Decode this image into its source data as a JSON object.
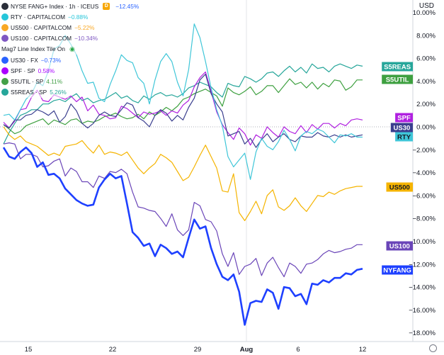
{
  "header": {
    "currency": "USD"
  },
  "legend": [
    {
      "name": "NYSE FANG+ Index · 1h · ICEUS",
      "value": "−12.45%",
      "color": "#2962ff",
      "icon": "fang",
      "flag": "D",
      "main": true
    },
    {
      "name": "RTY · CAPITALCOM",
      "value": "−0.88%",
      "color": "#26c6da",
      "icon": "rty"
    },
    {
      "name": "US500 · CAPITALCOM",
      "value": "−5.22%",
      "color": "#f9a825",
      "icon": "500"
    },
    {
      "name": "US100 · CAPITALCOM",
      "value": "−10.34%",
      "color": "#7e57c2",
      "icon": "100"
    },
    {
      "name": "Mag7 Line Index Tile On",
      "value": "",
      "color": "",
      "icon": "",
      "eye": true
    },
    {
      "name": "US30 · FX",
      "value": "−0.73%",
      "color": "#2962ff",
      "icon": "30"
    },
    {
      "name": "SPF · SP",
      "value": "0.58%",
      "color": "#aa00ff",
      "icon": "spf"
    },
    {
      "name": "S5UTIL · SP",
      "value": "4.11%",
      "color": "#43a047",
      "icon": "s5u"
    },
    {
      "name": "S5REAS · SP",
      "value": "5.26%",
      "color": "#26a69a",
      "icon": "s5r"
    }
  ],
  "colors": {
    "NYFANG": "#1e40ff",
    "US100": "#6a45b8",
    "US500": "#f5b400",
    "RTY": "#3fc6d8",
    "US30": "#3b3f8f",
    "SPF": "#b020e0",
    "S5UTIL": "#3ea040",
    "S5REAS": "#26a69a"
  },
  "chart_data": {
    "type": "line",
    "x_ticks": [
      "15",
      "22",
      "29",
      "Aug",
      "6",
      "12"
    ],
    "y_ticks": [
      "10.00%",
      "8.00%",
      "6.00%",
      "4.00%",
      "2.00%",
      "0.00%",
      "−2.00%",
      "−4.00%",
      "−6.00%",
      "−8.00%",
      "−10.00%",
      "−12.00%",
      "−14.00%",
      "−16.00%",
      "−18.00%"
    ],
    "ylim": [
      -19,
      11
    ],
    "y_unit": "%",
    "series": [
      {
        "name": "S5REAS",
        "label": "S5REAS",
        "values": [
          -1.5,
          -0.5,
          0.3,
          1.0,
          1.2,
          1.5,
          1.5,
          2.0,
          2.0,
          2.3,
          2.4,
          2.2,
          2.6,
          2.9,
          2.3,
          2.5,
          2.1,
          2.3,
          2.4,
          2.7,
          3.0,
          2.5,
          2.7,
          2.3,
          2.1,
          2.7,
          2.4,
          2.8,
          3.0,
          2.7,
          2.8,
          2.6,
          2.9,
          3.4,
          3.6,
          3.9,
          3.7,
          3.5,
          3.0,
          2.6,
          3.8,
          3.6,
          3.5,
          4.4,
          4.2,
          3.9,
          4.2,
          4.7,
          4.8,
          4.4,
          4.9,
          5.3,
          4.8,
          5.2,
          4.7,
          5.5,
          5.1,
          5.2,
          4.8,
          5.3,
          5.5,
          5.3,
          5.1,
          5.4,
          5.3
        ]
      },
      {
        "name": "S5UTIL",
        "label": "S5UTIL",
        "values": [
          0.2,
          -0.2,
          -0.6,
          -0.4,
          0.1,
          0.3,
          0.5,
          0.7,
          0.2,
          0.6,
          0.4,
          0.2,
          0.6,
          0.7,
          0.3,
          0.5,
          0.4,
          0.6,
          0.9,
          1.0,
          1.2,
          0.9,
          0.7,
          0.8,
          1.1,
          0.7,
          1.3,
          1.0,
          1.3,
          1.7,
          1.4,
          1.8,
          2.4,
          2.6,
          2.9,
          3.1,
          3.3,
          3.0,
          2.7,
          1.8,
          3.4,
          3.0,
          2.8,
          3.1,
          3.5,
          2.8,
          3.1,
          3.6,
          3.6,
          3.0,
          3.6,
          4.2,
          3.7,
          3.9,
          3.4,
          3.9,
          3.3,
          3.8,
          3.5,
          4.1,
          4.0,
          3.2,
          3.5,
          4.1,
          4.1
        ]
      },
      {
        "name": "SPF",
        "label": "SPF",
        "values": [
          0.4,
          -0.1,
          0.5,
          1.5,
          1.6,
          2.6,
          3.2,
          2.3,
          2.2,
          2.8,
          2.6,
          2.4,
          2.7,
          2.2,
          2.6,
          1.4,
          1.9,
          1.1,
          1.0,
          0.7,
          0.8,
          1.8,
          1.6,
          1.2,
          0.8,
          1.3,
          1.1,
          1.2,
          1.4,
          1.0,
          1.4,
          1.2,
          1.9,
          2.3,
          3.5,
          4.3,
          4.8,
          3.1,
          1.3,
          0.2,
          -0.5,
          -1.1,
          -0.1,
          -0.6,
          -1.6,
          -0.7,
          -1.0,
          0.0,
          -0.5,
          -0.9,
          0.0,
          -0.4,
          -0.6,
          0.1,
          -0.5,
          0.2,
          -0.2,
          0.3,
          0.3,
          -0.1,
          0.3,
          0.1,
          0.6,
          0.7,
          0.6
        ]
      },
      {
        "name": "US30",
        "label": "US30",
        "values": [
          0.2,
          -0.1,
          0.6,
          0.6,
          1.0,
          1.1,
          1.5,
          1.3,
          1.0,
          1.4,
          0.4,
          0.9,
          2.0,
          1.4,
          0.3,
          -0.1,
          0.3,
          1.0,
          1.3,
          1.0,
          0.9,
          1.5,
          2.1,
          1.9,
          0.8,
          0.5,
          0.0,
          1.0,
          1.5,
          1.2,
          0.5,
          1.0,
          0.6,
          1.7,
          2.5,
          4.1,
          4.6,
          2.9,
          2.0,
          1.3,
          -0.8,
          -0.6,
          -0.4,
          -1.5,
          -1.0,
          -1.8,
          -1.1,
          -0.6,
          -1.3,
          -0.9,
          -0.6,
          -1.1,
          -1.3,
          -0.8,
          -0.9,
          -0.9,
          -0.5,
          -0.8,
          -0.9,
          -0.7,
          -0.9,
          -0.7,
          -0.9,
          -0.8,
          -0.7
        ]
      },
      {
        "name": "RTY",
        "label": "RTY",
        "values": [
          1.0,
          1.1,
          0.6,
          1.5,
          2.4,
          2.9,
          3.9,
          3.6,
          4.9,
          6.8,
          7.1,
          8.0,
          7.2,
          6.3,
          4.9,
          3.8,
          3.9,
          2.5,
          2.2,
          3.7,
          4.9,
          6.3,
          5.8,
          5.6,
          4.3,
          3.8,
          2.0,
          4.1,
          5.7,
          6.4,
          5.7,
          3.9,
          2.7,
          5.0,
          9.0,
          7.8,
          5.7,
          3.4,
          1.5,
          0.1,
          -2.6,
          -3.5,
          -2.9,
          -2.3,
          -4.6,
          -2.2,
          -1.0,
          -1.7,
          -2.0,
          -1.3,
          -0.3,
          -1.1,
          -2.1,
          -0.8,
          -0.4,
          -0.6,
          -0.2,
          -0.4,
          -0.9,
          -1.4,
          -0.7,
          -0.8,
          -0.6,
          -0.9,
          -0.9
        ]
      },
      {
        "name": "US500",
        "label": "US500",
        "values": [
          0.0,
          -0.7,
          -1.1,
          -0.8,
          -1.3,
          -1.5,
          -1.7,
          -2.1,
          -2.5,
          -2.3,
          -2.5,
          -1.7,
          -1.6,
          -1.5,
          -1.2,
          -1.8,
          -2.3,
          -1.6,
          -2.4,
          -2.2,
          -2.3,
          -2.5,
          -2.2,
          -2.9,
          -3.6,
          -4.1,
          -3.6,
          -3.2,
          -2.4,
          -2.7,
          -3.1,
          -3.9,
          -4.7,
          -4.4,
          -3.5,
          -2.5,
          -1.6,
          -2.6,
          -3.6,
          -5.6,
          -5.7,
          -4.1,
          -7.5,
          -8.2,
          -7.4,
          -6.5,
          -7.6,
          -6.0,
          -5.5,
          -7.0,
          -7.3,
          -6.9,
          -6.2,
          -6.9,
          -7.4,
          -6.7,
          -6.0,
          -6.1,
          -5.7,
          -5.9,
          -5.6,
          -5.4,
          -5.3,
          -5.2,
          -5.2
        ]
      },
      {
        "name": "US100",
        "label": "US100",
        "values": [
          -1.5,
          -1.4,
          -1.5,
          -2.8,
          -2.4,
          -2.4,
          -2.6,
          -3.5,
          -3.4,
          -3.0,
          -2.8,
          -4.3,
          -3.6,
          -3.9,
          -4.8,
          -4.8,
          -5.3,
          -4.3,
          -4.5,
          -3.9,
          -4.0,
          -3.7,
          -4.1,
          -5.7,
          -7.0,
          -7.1,
          -7.3,
          -7.4,
          -8.0,
          -8.7,
          -7.6,
          -9.0,
          -9.5,
          -9.0,
          -6.6,
          -6.9,
          -8.1,
          -8.3,
          -9.1,
          -11.1,
          -12.2,
          -11.0,
          -12.9,
          -12.2,
          -12.0,
          -11.5,
          -13.0,
          -11.9,
          -11.4,
          -12.3,
          -13.1,
          -11.9,
          -12.2,
          -12.8,
          -12.0,
          -11.9,
          -11.6,
          -11.1,
          -10.8,
          -11.0,
          -10.9,
          -10.7,
          -10.6,
          -10.3,
          -10.3
        ]
      },
      {
        "name": "NYFANG",
        "label": "NYFANG",
        "values": [
          -1.8,
          -2.6,
          -2.8,
          -2.2,
          -1.8,
          -2.3,
          -3.5,
          -3.1,
          -4.2,
          -4.1,
          -4.5,
          -5.4,
          -5.9,
          -6.4,
          -6.7,
          -6.9,
          -6.8,
          -5.3,
          -4.6,
          -4.1,
          -4.5,
          -4.3,
          -6.7,
          -9.2,
          -9.7,
          -10.4,
          -10.2,
          -11.3,
          -10.3,
          -10.6,
          -11.1,
          -10.9,
          -11.4,
          -9.7,
          -8.1,
          -8.9,
          -8.7,
          -10.6,
          -12.0,
          -13.1,
          -13.4,
          -12.9,
          -14.4,
          -17.3,
          -15.4,
          -15.2,
          -15.3,
          -14.2,
          -14.5,
          -15.9,
          -14.0,
          -14.1,
          -14.8,
          -14.6,
          -15.5,
          -13.7,
          -13.8,
          -13.4,
          -13.6,
          -13.2,
          -13.2,
          -12.8,
          -12.9,
          -12.5,
          -12.4
        ]
      }
    ],
    "x_marker": "Aug",
    "baseline": 0
  }
}
